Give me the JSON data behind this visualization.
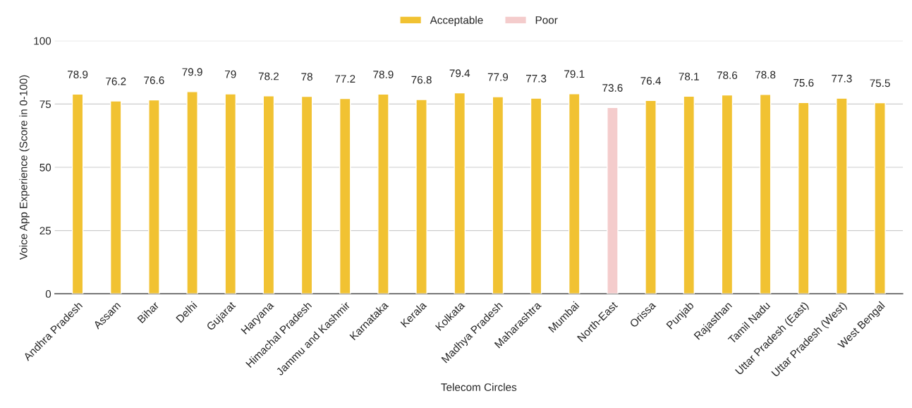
{
  "chart_data": {
    "type": "bar",
    "xlabel": "Telecom Circles",
    "ylabel": "Voice App Experience (Score in 0-100)",
    "categories": [
      "Andhra Pradesh",
      "Assam",
      "Bihar",
      "Delhi",
      "Gujarat",
      "Haryana",
      "Himachal Pradesh",
      "Jammu and Kashmir",
      "Karnataka",
      "Kerala",
      "Kolkata",
      "Madhya Pradesh",
      "Maharashtra",
      "Mumbai",
      "North-East",
      "Orissa",
      "Punjab",
      "Rajasthan",
      "Tamil Nadu",
      "Uttar Pradesh (East)",
      "Uttar Pradesh (West)",
      "West Bengal"
    ],
    "series": [
      {
        "name": "Acceptable",
        "color": "#f1c232",
        "values": [
          78.9,
          76.2,
          76.6,
          79.9,
          79,
          78.2,
          78,
          77.2,
          78.9,
          76.8,
          79.4,
          77.9,
          77.3,
          79.1,
          null,
          76.4,
          78.1,
          78.6,
          78.8,
          75.6,
          77.3,
          75.5
        ]
      },
      {
        "name": "Poor",
        "color": "#f4cccc",
        "values": [
          null,
          null,
          null,
          null,
          null,
          null,
          null,
          null,
          null,
          null,
          null,
          null,
          null,
          null,
          73.6,
          null,
          null,
          null,
          null,
          null,
          null,
          null
        ]
      }
    ],
    "ylim": [
      0,
      100
    ],
    "yticks": [
      0,
      25,
      50,
      75,
      100
    ],
    "grid": "y",
    "legend": "top",
    "data_labels": true
  }
}
